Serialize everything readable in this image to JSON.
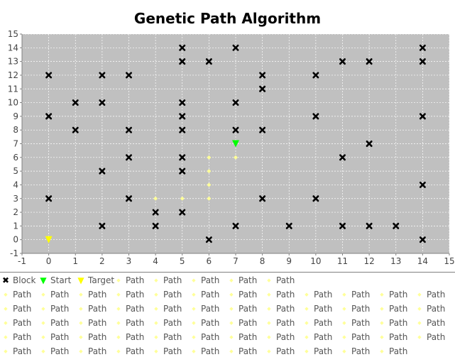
{
  "chart_data": {
    "type": "scatter",
    "title": "Genetic Path Algorithm",
    "xlabel": "",
    "ylabel": "",
    "xlim": [
      -1,
      15
    ],
    "ylim": [
      -1,
      15
    ],
    "x_ticks": [
      -1,
      0,
      1,
      2,
      3,
      4,
      5,
      6,
      7,
      8,
      9,
      10,
      11,
      12,
      13,
      14,
      15
    ],
    "y_ticks": [
      -1,
      0,
      1,
      2,
      3,
      4,
      5,
      6,
      7,
      8,
      9,
      10,
      11,
      12,
      13,
      14,
      15
    ],
    "grid": true,
    "plot_background": "#c0c0c0",
    "grid_color": "#ffffff",
    "legend_position": "bottom",
    "series": [
      {
        "name": "Block",
        "marker": "x",
        "color": "#000000",
        "points": [
          [
            0,
            12
          ],
          [
            0,
            9
          ],
          [
            0,
            3
          ],
          [
            1,
            10
          ],
          [
            1,
            8
          ],
          [
            2,
            12
          ],
          [
            2,
            10
          ],
          [
            2,
            5
          ],
          [
            2,
            1
          ],
          [
            3,
            12
          ],
          [
            3,
            8
          ],
          [
            3,
            6
          ],
          [
            3,
            3
          ],
          [
            4,
            2
          ],
          [
            4,
            1
          ],
          [
            5,
            14
          ],
          [
            5,
            13
          ],
          [
            5,
            10
          ],
          [
            5,
            9
          ],
          [
            5,
            8
          ],
          [
            5,
            6
          ],
          [
            5,
            5
          ],
          [
            5,
            2
          ],
          [
            6,
            13
          ],
          [
            6,
            0
          ],
          [
            7,
            14
          ],
          [
            7,
            10
          ],
          [
            7,
            8
          ],
          [
            7,
            1
          ],
          [
            8,
            12
          ],
          [
            8,
            11
          ],
          [
            8,
            8
          ],
          [
            8,
            3
          ],
          [
            9,
            1
          ],
          [
            10,
            12
          ],
          [
            10,
            9
          ],
          [
            10,
            3
          ],
          [
            11,
            13
          ],
          [
            11,
            6
          ],
          [
            11,
            1
          ],
          [
            12,
            13
          ],
          [
            12,
            7
          ],
          [
            12,
            1
          ],
          [
            13,
            1
          ],
          [
            14,
            14
          ],
          [
            14,
            13
          ],
          [
            14,
            9
          ],
          [
            14,
            4
          ],
          [
            14,
            0
          ]
        ]
      },
      {
        "name": "Start",
        "marker": "triangle-down",
        "color": "#00ff00",
        "points": [
          [
            7,
            7
          ]
        ]
      },
      {
        "name": "Target",
        "marker": "triangle-down",
        "color": "#ffff00",
        "points": [
          [
            0,
            0
          ]
        ]
      },
      {
        "name": "Path",
        "marker": "diamond",
        "color": "#ffff99",
        "points": [
          [
            7,
            6
          ],
          [
            6,
            6
          ],
          [
            6,
            5
          ],
          [
            6,
            4
          ],
          [
            6,
            3
          ],
          [
            5,
            3
          ],
          [
            4,
            3
          ]
        ]
      }
    ],
    "legend": {
      "entries": [
        {
          "label": "Block",
          "marker": "x",
          "color": "#000000"
        },
        {
          "label": "Start",
          "marker": "triangle-down",
          "color": "#00ff00"
        },
        {
          "label": "Target",
          "marker": "triangle-down",
          "color": "#ffff00"
        },
        {
          "label": "Path",
          "marker": "diamond",
          "color": "#ffff99"
        },
        {
          "label": "Path",
          "marker": "diamond",
          "color": "#ffff99"
        },
        {
          "label": "Path",
          "marker": "diamond",
          "color": "#ffff99"
        },
        {
          "label": "Path",
          "marker": "diamond",
          "color": "#ffff99"
        },
        {
          "label": "Path",
          "marker": "diamond",
          "color": "#ffff99"
        },
        {
          "label": "Path",
          "marker": "diamond",
          "color": "#ffff99"
        },
        {
          "label": "Path",
          "marker": "diamond",
          "color": "#ffff99"
        },
        {
          "label": "Path",
          "marker": "diamond",
          "color": "#ffff99"
        },
        {
          "label": "Path",
          "marker": "diamond",
          "color": "#ffff99"
        },
        {
          "label": "Path",
          "marker": "diamond",
          "color": "#ffff99"
        },
        {
          "label": "Path",
          "marker": "diamond",
          "color": "#ffff99"
        },
        {
          "label": "Path",
          "marker": "diamond",
          "color": "#ffff99"
        },
        {
          "label": "Path",
          "marker": "diamond",
          "color": "#ffff99"
        },
        {
          "label": "Path",
          "marker": "diamond",
          "color": "#ffff99"
        },
        {
          "label": "Path",
          "marker": "diamond",
          "color": "#ffff99"
        },
        {
          "label": "Path",
          "marker": "diamond",
          "color": "#ffff99"
        },
        {
          "label": "Path",
          "marker": "diamond",
          "color": "#ffff99"
        },
        {
          "label": "Path",
          "marker": "diamond",
          "color": "#ffff99"
        },
        {
          "label": "Path",
          "marker": "diamond",
          "color": "#ffff99"
        },
        {
          "label": "Path",
          "marker": "diamond",
          "color": "#ffff99"
        },
        {
          "label": "Path",
          "marker": "diamond",
          "color": "#ffff99"
        },
        {
          "label": "Path",
          "marker": "diamond",
          "color": "#ffff99"
        },
        {
          "label": "Path",
          "marker": "diamond",
          "color": "#ffff99"
        },
        {
          "label": "Path",
          "marker": "diamond",
          "color": "#ffff99"
        },
        {
          "label": "Path",
          "marker": "diamond",
          "color": "#ffff99"
        },
        {
          "label": "Path",
          "marker": "diamond",
          "color": "#ffff99"
        },
        {
          "label": "Path",
          "marker": "diamond",
          "color": "#ffff99"
        },
        {
          "label": "Path",
          "marker": "diamond",
          "color": "#ffff99"
        },
        {
          "label": "Path",
          "marker": "diamond",
          "color": "#ffff99"
        },
        {
          "label": "Path",
          "marker": "diamond",
          "color": "#ffff99"
        },
        {
          "label": "Path",
          "marker": "diamond",
          "color": "#ffff99"
        },
        {
          "label": "Path",
          "marker": "diamond",
          "color": "#ffff99"
        },
        {
          "label": "Path",
          "marker": "diamond",
          "color": "#ffff99"
        },
        {
          "label": "Path",
          "marker": "diamond",
          "color": "#ffff99"
        },
        {
          "label": "Path",
          "marker": "diamond",
          "color": "#ffff99"
        },
        {
          "label": "Path",
          "marker": "diamond",
          "color": "#ffff99"
        },
        {
          "label": "Path",
          "marker": "diamond",
          "color": "#ffff99"
        },
        {
          "label": "Path",
          "marker": "diamond",
          "color": "#ffff99"
        },
        {
          "label": "Path",
          "marker": "diamond",
          "color": "#ffff99"
        },
        {
          "label": "Path",
          "marker": "diamond",
          "color": "#ffff99"
        },
        {
          "label": "Path",
          "marker": "diamond",
          "color": "#ffff99"
        },
        {
          "label": "Path",
          "marker": "diamond",
          "color": "#ffff99"
        },
        {
          "label": "Path",
          "marker": "diamond",
          "color": "#ffff99"
        },
        {
          "label": "Path",
          "marker": "diamond",
          "color": "#ffff99"
        },
        {
          "label": "Path",
          "marker": "diamond",
          "color": "#ffff99"
        },
        {
          "label": "Path",
          "marker": "diamond",
          "color": "#ffff99"
        },
        {
          "label": "Path",
          "marker": "diamond",
          "color": "#ffff99"
        },
        {
          "label": "Path",
          "marker": "diamond",
          "color": "#ffff99"
        },
        {
          "label": "Path",
          "marker": "diamond",
          "color": "#ffff99"
        },
        {
          "label": "Path",
          "marker": "diamond",
          "color": "#ffff99"
        },
        {
          "label": "Path",
          "marker": "diamond",
          "color": "#ffff99"
        },
        {
          "label": "Path",
          "marker": "diamond",
          "color": "#ffff99"
        },
        {
          "label": "Path",
          "marker": "diamond",
          "color": "#ffff99"
        },
        {
          "label": "Path",
          "marker": "diamond",
          "color": "#ffff99"
        },
        {
          "label": "Path",
          "marker": "diamond",
          "color": "#ffff99"
        },
        {
          "label": "Path",
          "marker": "diamond",
          "color": "#ffff99"
        },
        {
          "label": "Path",
          "marker": "diamond",
          "color": "#ffff99"
        },
        {
          "label": "Path",
          "marker": "diamond",
          "color": "#ffff99"
        },
        {
          "label": "Path",
          "marker": "diamond",
          "color": "#ffff99"
        },
        {
          "label": "Path",
          "marker": "diamond",
          "color": "#ffff99"
        },
        {
          "label": "Path",
          "marker": "diamond",
          "color": "#ffff99"
        },
        {
          "label": "Path",
          "marker": "diamond",
          "color": "#ffff99"
        },
        {
          "label": "Path",
          "marker": "diamond",
          "color": "#ffff99"
        },
        {
          "label": "Path",
          "marker": "diamond",
          "color": "#ffff99"
        }
      ]
    }
  }
}
